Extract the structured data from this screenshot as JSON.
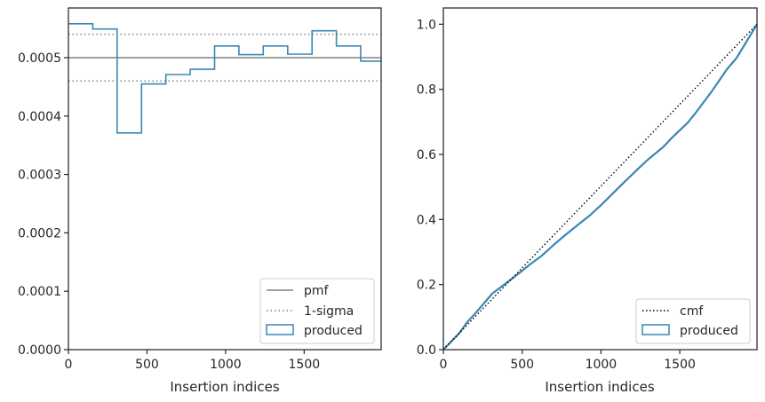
{
  "chart_data": [
    {
      "type": "line",
      "subtype": "step-histogram",
      "title": "",
      "xlabel": "Insertion indices",
      "ylabel": "",
      "xlim": [
        0,
        1990
      ],
      "ylim": [
        0,
        0.000585
      ],
      "xticks": [
        0,
        500,
        1000,
        1500
      ],
      "xtick_labels": [
        "0",
        "500",
        "1000",
        "1500"
      ],
      "yticks": [
        0,
        0.0001,
        0.0002,
        0.0003,
        0.0004,
        0.0005
      ],
      "ytick_labels": [
        "0.0000",
        "0.0001",
        "0.0002",
        "0.0003",
        "0.0004",
        "0.0005"
      ],
      "grid": false,
      "legend_position": "lower-right",
      "legend": [
        "pmf",
        "1-sigma",
        "produced"
      ],
      "pmf": 0.0005,
      "sigma_band": [
        0.00046,
        0.00054
      ],
      "bin_edges": [
        0,
        155,
        310,
        465,
        620,
        775,
        930,
        1085,
        1240,
        1395,
        1550,
        1705,
        1860,
        1990
      ],
      "values": [
        0.000558,
        0.000549,
        0.000371,
        0.000455,
        0.000471,
        0.00048,
        0.00052,
        0.000505,
        0.00052,
        0.000506,
        0.000546,
        0.00052,
        0.000494
      ],
      "colors": {
        "pmf": "#808080",
        "sigma": "#808080",
        "produced": "#3a87b5"
      }
    },
    {
      "type": "line",
      "title": "",
      "xlabel": "Insertion indices",
      "ylabel": "",
      "xlim": [
        0,
        1990
      ],
      "ylim": [
        0,
        1.05
      ],
      "xticks": [
        0,
        500,
        1000,
        1500
      ],
      "xtick_labels": [
        "0",
        "500",
        "1000",
        "1500"
      ],
      "yticks": [
        0,
        0.2,
        0.4,
        0.6,
        0.8,
        1.0
      ],
      "ytick_labels": [
        "0.0",
        "0.2",
        "0.4",
        "0.6",
        "0.8",
        "1.0"
      ],
      "grid": false,
      "legend_position": "lower-right",
      "legend": [
        "cmf",
        "produced"
      ],
      "cmf": {
        "x": [
          0,
          1990
        ],
        "y": [
          0,
          1.0
        ]
      },
      "produced": {
        "x": [
          0,
          100,
          155,
          200,
          310,
          400,
          465,
          550,
          620,
          700,
          775,
          850,
          930,
          1000,
          1085,
          1150,
          1240,
          1300,
          1395,
          1450,
          1550,
          1600,
          1705,
          1800,
          1860,
          1990
        ],
        "y": [
          0,
          0.05,
          0.087,
          0.11,
          0.172,
          0.205,
          0.229,
          0.262,
          0.287,
          0.322,
          0.353,
          0.382,
          0.413,
          0.444,
          0.485,
          0.516,
          0.558,
          0.585,
          0.623,
          0.651,
          0.697,
          0.727,
          0.795,
          0.862,
          0.896,
          1.0
        ]
      },
      "colors": {
        "cmf": "#000000",
        "produced": "#3a87b5"
      }
    }
  ]
}
